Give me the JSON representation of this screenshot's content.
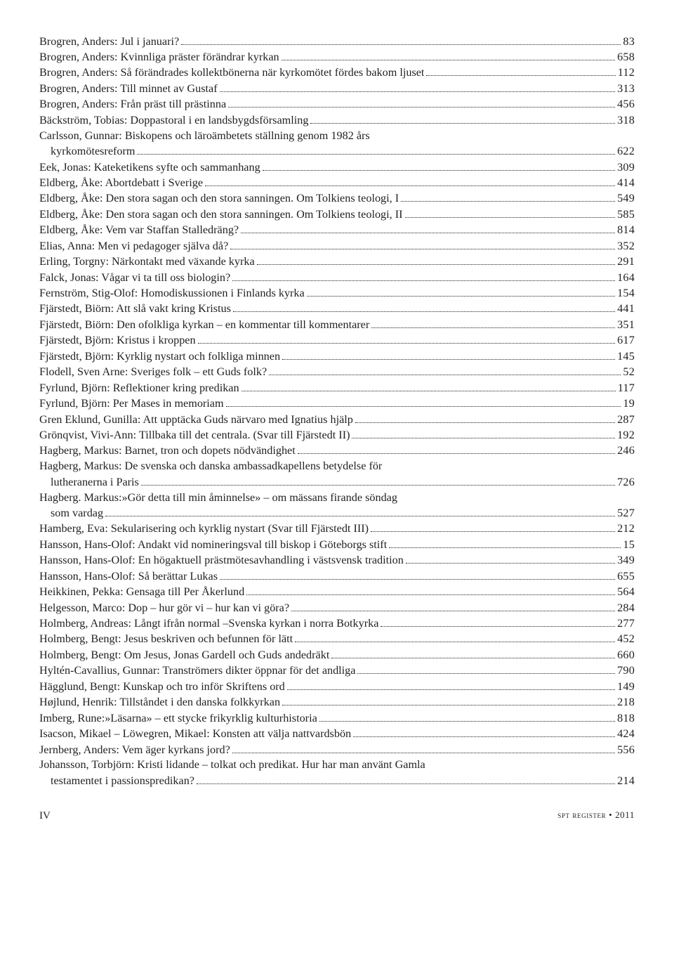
{
  "entries": [
    {
      "text": "Brogren, Anders: Jul i januari?",
      "page": "83",
      "indent": false
    },
    {
      "text": "Brogren, Anders: Kvinnliga präster förändrar kyrkan",
      "page": "658",
      "indent": false
    },
    {
      "text": "Brogren, Anders: Så förändrades kollektbönerna när kyrkomötet fördes bakom ljuset",
      "page": "112",
      "indent": false
    },
    {
      "text": "Brogren, Anders: Till minnet av Gustaf",
      "page": "313",
      "indent": false
    },
    {
      "text": "Brogren, Anders: Från präst till prästinna",
      "page": "456",
      "indent": false
    },
    {
      "text": "Bäckström, Tobias: Doppastoral i en landsbygdsförsamling",
      "page": "318",
      "indent": false
    },
    {
      "text": "Carlsson, Gunnar: Biskopens och läroämbetets ställning genom 1982 års",
      "page": "",
      "indent": false,
      "noleader": true
    },
    {
      "text": "kyrkomötesreform",
      "page": "622",
      "indent": true
    },
    {
      "text": "Eek, Jonas: Kateketikens syfte och sammanhang",
      "page": "309",
      "indent": false
    },
    {
      "text": "Eldberg, Åke: Abortdebatt i Sverige",
      "page": "414",
      "indent": false
    },
    {
      "text": "Eldberg, Åke: Den stora sagan och den stora sanningen. Om Tolkiens teologi, I",
      "page": "549",
      "indent": false
    },
    {
      "text": "Eldberg, Åke: Den stora sagan och den stora sanningen. Om Tolkiens teologi, II",
      "page": "585",
      "indent": false
    },
    {
      "text": "Eldberg, Åke: Vem var Staffan Stalledräng?",
      "page": "814",
      "indent": false
    },
    {
      "text": "Elias, Anna: Men vi pedagoger själva då?",
      "page": "352",
      "indent": false
    },
    {
      "text": "Erling, Torgny: Närkontakt med växande kyrka",
      "page": "291",
      "indent": false
    },
    {
      "text": "Falck, Jonas: Vågar vi ta till oss biologin?",
      "page": "164",
      "indent": false
    },
    {
      "text": "Fernström, Stig-Olof: Homodiskussionen i Finlands kyrka",
      "page": "154",
      "indent": false
    },
    {
      "text": "Fjärstedt, Biörn: Att slå vakt kring Kristus",
      "page": "441",
      "indent": false
    },
    {
      "text": "Fjärstedt, Biörn: Den ofolkliga kyrkan – en kommentar till kommentarer",
      "page": "351",
      "indent": false
    },
    {
      "text": "Fjärstedt, Björn: Kristus i kroppen",
      "page": "617",
      "indent": false
    },
    {
      "text": "Fjärstedt, Björn: Kyrklig nystart och folkliga minnen",
      "page": "145",
      "indent": false
    },
    {
      "text": "Flodell, Sven Arne: Sveriges folk – ett Guds folk?",
      "page": "52",
      "indent": false
    },
    {
      "text": "Fyrlund, Björn: Reflektioner kring predikan",
      "page": "117",
      "indent": false
    },
    {
      "text": "Fyrlund, Björn: Per Mases in memoriam",
      "page": "19",
      "indent": false
    },
    {
      "text": "Gren Eklund, Gunilla: Att upptäcka Guds närvaro med Ignatius hjälp",
      "page": "287",
      "indent": false
    },
    {
      "text": "Grönqvist, Vivi-Ann: Tillbaka till det centrala. (Svar till Fjärstedt II)",
      "page": "192",
      "indent": false
    },
    {
      "text": "Hagberg, Markus: Barnet, tron och dopets nödvändighet",
      "page": "246",
      "indent": false
    },
    {
      "text": "Hagberg, Markus: De svenska och danska ambassadkapellens betydelse för",
      "page": "",
      "indent": false,
      "noleader": true
    },
    {
      "text": "lutheranerna i Paris",
      "page": "726",
      "indent": true
    },
    {
      "text": "Hagberg. Markus:»Gör detta till min åminnelse» – om mässans firande söndag",
      "page": "",
      "indent": false,
      "noleader": true
    },
    {
      "text": "som vardag",
      "page": "527",
      "indent": true
    },
    {
      "text": "Hamberg, Eva: Sekularisering och kyrklig nystart (Svar till Fjärstedt III)",
      "page": "212",
      "indent": false
    },
    {
      "text": "Hansson, Hans-Olof: Andakt vid nomineringsval till biskop i Göteborgs stift",
      "page": "15",
      "indent": false
    },
    {
      "text": "Hansson, Hans-Olof: En högaktuell prästmötesavhandling i västsvensk tradition",
      "page": "349",
      "indent": false
    },
    {
      "text": "Hansson, Hans-Olof: Så berättar Lukas",
      "page": "655",
      "indent": false
    },
    {
      "text": "Heikkinen, Pekka: Gensaga till Per Åkerlund",
      "page": "564",
      "indent": false
    },
    {
      "text": "Helgesson, Marco: Dop – hur gör vi – hur kan vi göra?",
      "page": "284",
      "indent": false
    },
    {
      "text": "Holmberg, Andreas: Långt ifrån normal –Svenska kyrkan i norra Botkyrka",
      "page": "277",
      "indent": false
    },
    {
      "text": "Holmberg, Bengt: Jesus beskriven och befunnen för lätt",
      "page": "452",
      "indent": false
    },
    {
      "text": "Holmberg, Bengt: Om Jesus, Jonas Gardell och Guds andedräkt",
      "page": "660",
      "indent": false
    },
    {
      "text": "Hyltén-Cavallius, Gunnar: Tranströmers dikter öppnar för det andliga",
      "page": "790",
      "indent": false
    },
    {
      "text": "Hägglund, Bengt: Kunskap och tro inför Skriftens ord",
      "page": "149",
      "indent": false
    },
    {
      "text": "Højlund, Henrik: Tillståndet i den danska folkkyrkan",
      "page": "218",
      "indent": false
    },
    {
      "text": "Imberg, Rune:»Läsarna» – ett stycke frikyrklig kulturhistoria",
      "page": "818",
      "indent": false
    },
    {
      "text": "Isacson, Mikael – Löwegren, Mikael: Konsten att välja nattvardsbön",
      "page": "424",
      "indent": false
    },
    {
      "text": "Jernberg, Anders: Vem äger kyrkans jord?",
      "page": "556",
      "indent": false
    },
    {
      "text": "Johansson, Torbjörn: Kristi lidande – tolkat och predikat. Hur har man använt Gamla",
      "page": "",
      "indent": false,
      "noleader": true
    },
    {
      "text": "testamentet i passionspredikan?",
      "page": "214",
      "indent": true
    }
  ],
  "footer": {
    "left": "IV",
    "right": "spt register • 2011"
  }
}
